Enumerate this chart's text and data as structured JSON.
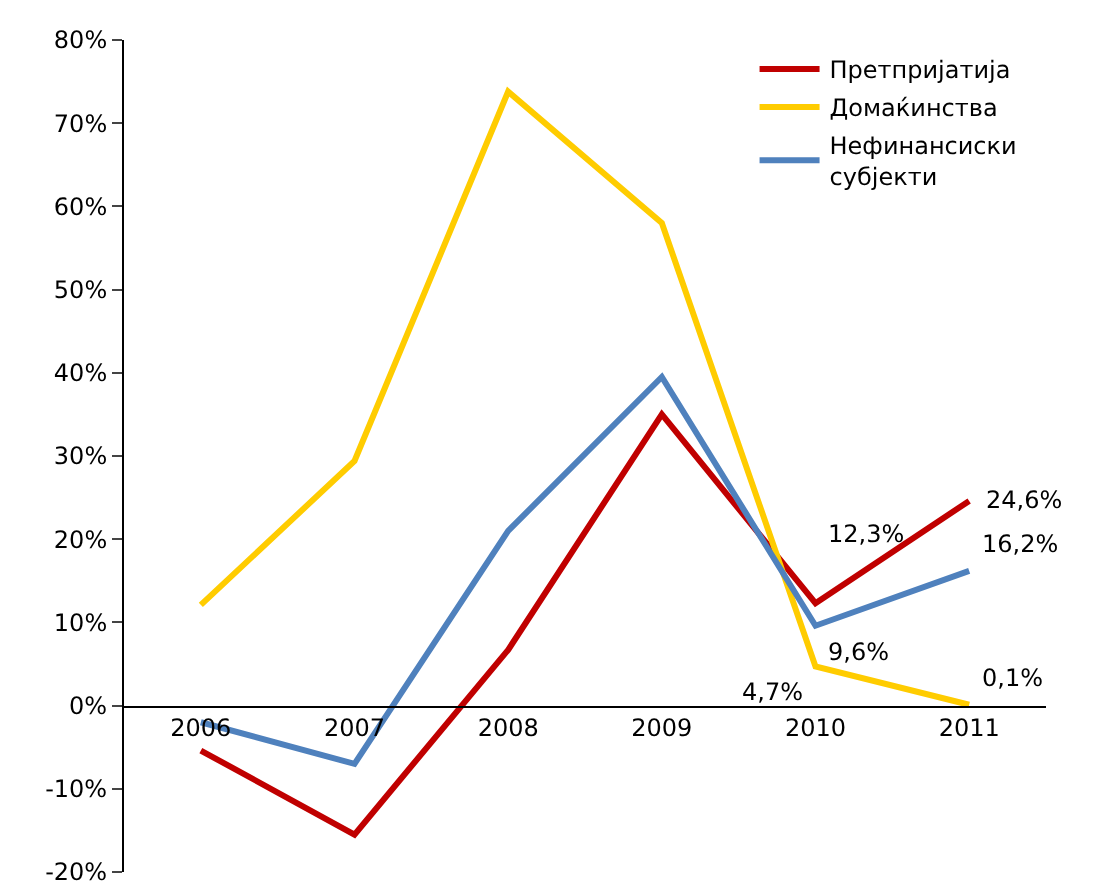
{
  "chart_data": {
    "type": "line",
    "categories": [
      "2006",
      "2007",
      "2008",
      "2009",
      "2010",
      "2011"
    ],
    "series": [
      {
        "name": "Претпријатија",
        "color": "#c00000",
        "values": [
          -5.4,
          -15.5,
          6.7,
          35,
          12.3,
          24.6
        ],
        "value_labels": [
          null,
          null,
          null,
          null,
          "12,3%",
          "24,6%"
        ]
      },
      {
        "name": "Домаќинства",
        "color": "#ffcc00",
        "values": [
          12.1,
          29.4,
          73.8,
          58,
          4.7,
          0.1
        ],
        "value_labels": [
          null,
          null,
          null,
          null,
          "4,7%",
          "0,1%"
        ]
      },
      {
        "name": "Нефинансиски субјекти",
        "color": "#4f81bd",
        "values": [
          -2,
          -7,
          21,
          39.5,
          9.6,
          16.2
        ],
        "value_labels": [
          null,
          null,
          null,
          null,
          "9,6%",
          "16,2%"
        ]
      }
    ],
    "ylim": [
      -20,
      80
    ],
    "yticks": [
      {
        "value": -20,
        "label": "-20%"
      },
      {
        "value": -10,
        "label": "-10%"
      },
      {
        "value": 0,
        "label": "0%"
      },
      {
        "value": 10,
        "label": "10%"
      },
      {
        "value": 20,
        "label": "20%"
      },
      {
        "value": 30,
        "label": "30%"
      },
      {
        "value": 40,
        "label": "40%"
      },
      {
        "value": 50,
        "label": "50%"
      },
      {
        "value": 60,
        "label": "60%"
      },
      {
        "value": 70,
        "label": "70%"
      },
      {
        "value": 80,
        "label": "80%"
      }
    ],
    "grid": false,
    "legend": "top right",
    "marker": "none",
    "line_style": "solid"
  }
}
